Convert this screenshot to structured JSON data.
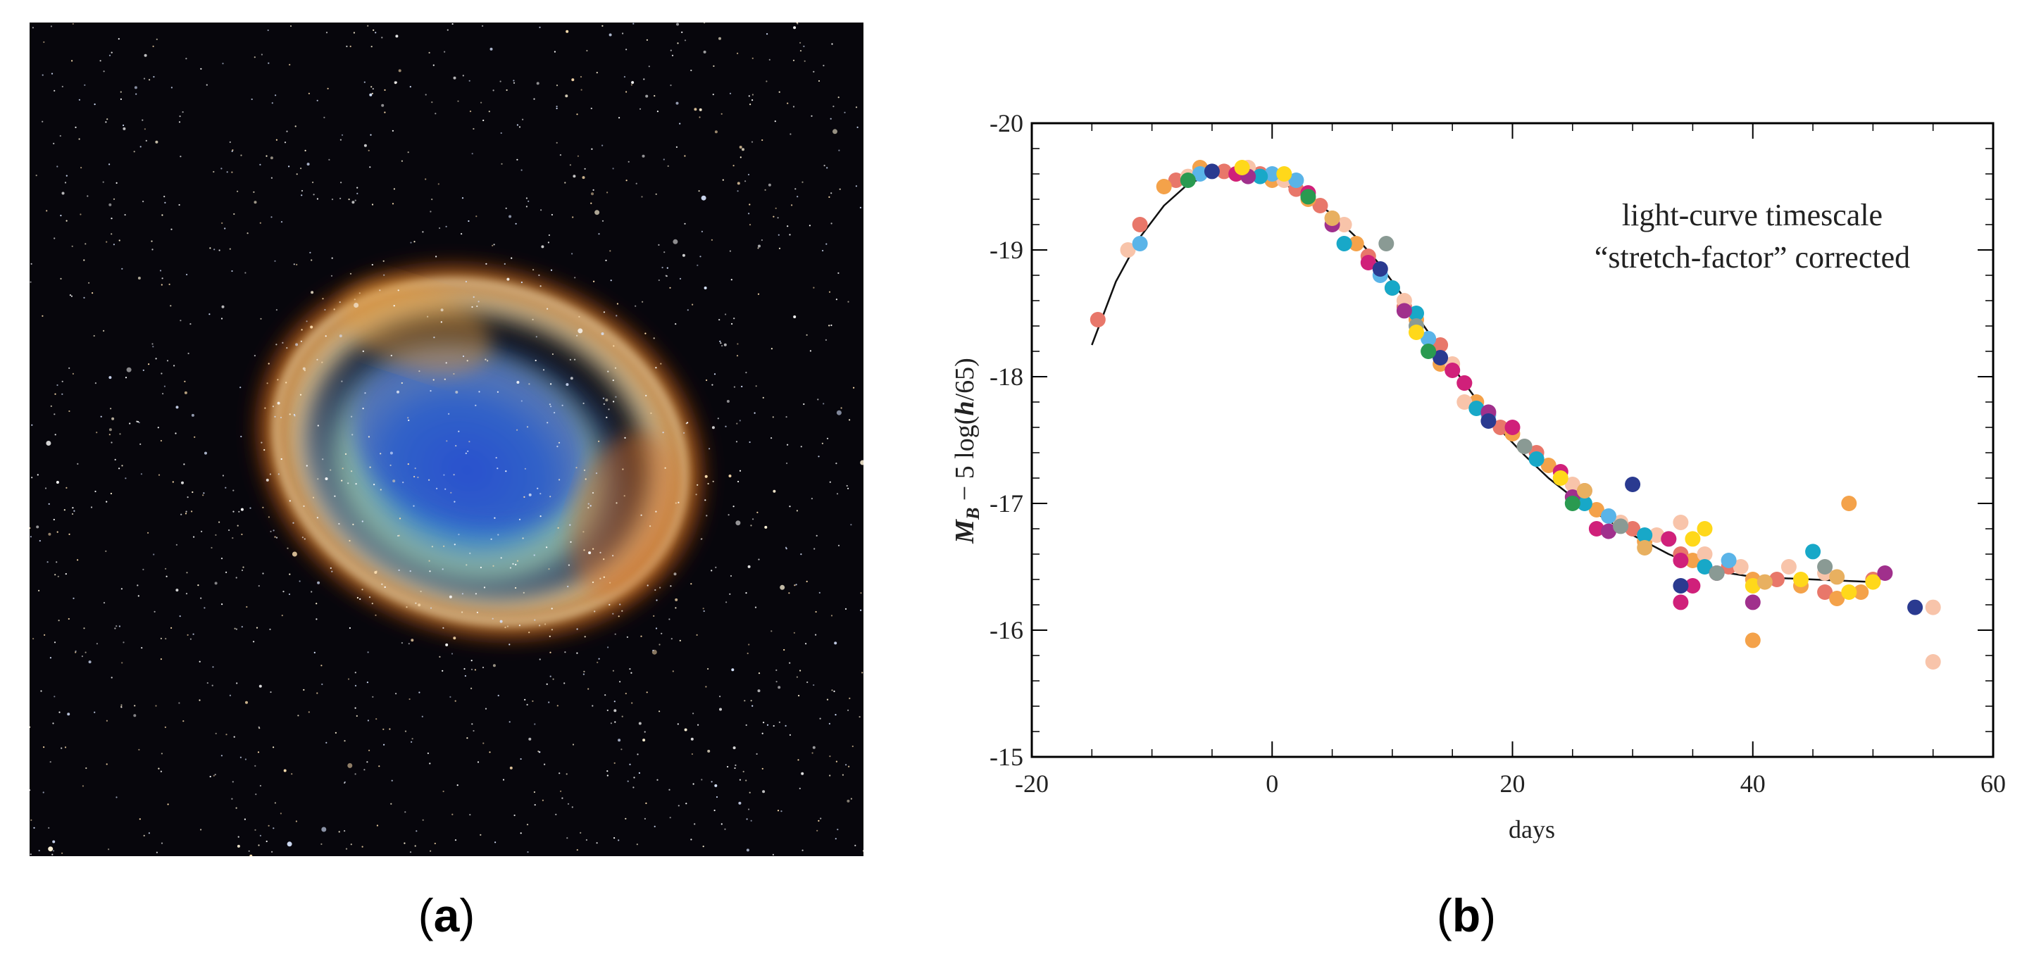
{
  "panel_a": {
    "label_open": "(",
    "label_letter": "a",
    "label_close": ")",
    "description_icon": "supernova-remnant-image"
  },
  "panel_b": {
    "label_open": "(",
    "label_letter": "b",
    "label_close": ")"
  },
  "chart_data": {
    "type": "scatter",
    "title": "",
    "annotation": [
      "light-curve timescale",
      "“stretch-factor” corrected"
    ],
    "xlabel": "days",
    "ylabel": "M_B − 5 log(h/65)",
    "ylabel_parts": {
      "m": "M",
      "sub": "B",
      "rest": " − 5 log(",
      "h": "h",
      "end": "/65)"
    },
    "xlim": [
      -20,
      60
    ],
    "ylim": [
      -15,
      -20
    ],
    "xticks": [
      -20,
      0,
      20,
      40,
      60
    ],
    "yticks": [
      -20,
      -19,
      -18,
      -17,
      -16,
      -15
    ],
    "grid": false,
    "fit_curve": {
      "x": [
        -15,
        -13,
        -11,
        -9,
        -7,
        -5,
        -3,
        -1,
        1,
        3,
        5,
        7,
        9,
        11,
        13,
        15,
        17,
        19,
        21,
        23,
        25,
        27,
        30,
        33,
        36,
        40,
        45,
        50
      ],
      "y": [
        -18.25,
        -18.75,
        -19.1,
        -19.35,
        -19.52,
        -19.6,
        -19.62,
        -19.6,
        -19.52,
        -19.42,
        -19.28,
        -19.1,
        -18.88,
        -18.62,
        -18.35,
        -18.08,
        -17.82,
        -17.58,
        -17.38,
        -17.2,
        -17.05,
        -16.92,
        -16.75,
        -16.6,
        -16.48,
        -16.42,
        -16.4,
        -16.38
      ]
    },
    "series": [
      {
        "name": "coral",
        "color": "#e8776a",
        "points": [
          [
            -14.5,
            -18.45
          ],
          [
            -11,
            -19.2
          ],
          [
            -8,
            -19.55
          ],
          [
            -4,
            -19.62
          ],
          [
            -1,
            -19.6
          ],
          [
            2,
            -19.48
          ],
          [
            4,
            -19.35
          ],
          [
            8,
            -18.95
          ],
          [
            11,
            -18.55
          ],
          [
            14,
            -18.25
          ],
          [
            16,
            -17.95
          ],
          [
            19,
            -17.6
          ],
          [
            22,
            -17.4
          ],
          [
            26,
            -17.1
          ],
          [
            30,
            -16.8
          ],
          [
            34,
            -16.6
          ],
          [
            38,
            -16.5
          ],
          [
            42,
            -16.4
          ],
          [
            46,
            -16.3
          ],
          [
            50,
            -16.4
          ]
        ]
      },
      {
        "name": "orange",
        "color": "#f4a24a",
        "points": [
          [
            -9,
            -19.5
          ],
          [
            -6,
            -19.65
          ],
          [
            -3,
            -19.6
          ],
          [
            0,
            -19.55
          ],
          [
            3,
            -19.4
          ],
          [
            5,
            -19.25
          ],
          [
            7,
            -19.05
          ],
          [
            10,
            -18.7
          ],
          [
            12,
            -18.45
          ],
          [
            14,
            -18.1
          ],
          [
            17,
            -17.8
          ],
          [
            20,
            -17.55
          ],
          [
            23,
            -17.3
          ],
          [
            27,
            -16.95
          ],
          [
            31,
            -16.7
          ],
          [
            35,
            -16.55
          ],
          [
            40,
            -16.4
          ],
          [
            44,
            -16.35
          ],
          [
            47,
            -16.25
          ],
          [
            48,
            -17.0
          ],
          [
            40,
            -15.92
          ],
          [
            49,
            -16.3
          ]
        ]
      },
      {
        "name": "peach",
        "color": "#f8c4aa",
        "points": [
          [
            -12,
            -19.0
          ],
          [
            -7,
            -19.58
          ],
          [
            -2,
            -19.65
          ],
          [
            1,
            -19.55
          ],
          [
            6,
            -19.2
          ],
          [
            11,
            -18.6
          ],
          [
            15,
            -18.1
          ],
          [
            16,
            -17.8
          ],
          [
            21,
            -17.45
          ],
          [
            25,
            -17.15
          ],
          [
            29,
            -16.85
          ],
          [
            32,
            -16.75
          ],
          [
            36,
            -16.6
          ],
          [
            39,
            -16.5
          ],
          [
            43,
            -16.5
          ],
          [
            46,
            -16.45
          ],
          [
            55,
            -16.18
          ],
          [
            55,
            -15.75
          ],
          [
            34,
            -16.85
          ]
        ]
      },
      {
        "name": "sky",
        "color": "#5ab4e8",
        "points": [
          [
            -11,
            -19.05
          ],
          [
            -6,
            -19.6
          ],
          [
            0,
            -19.6
          ],
          [
            2,
            -19.55
          ],
          [
            9,
            -18.8
          ],
          [
            13,
            -18.3
          ],
          [
            18,
            -17.7
          ],
          [
            22,
            -17.35
          ],
          [
            28,
            -16.9
          ],
          [
            33,
            -16.72
          ],
          [
            38,
            -16.55
          ]
        ]
      },
      {
        "name": "teal",
        "color": "#18a8c8",
        "points": [
          [
            -1,
            -19.58
          ],
          [
            6,
            -19.05
          ],
          [
            10,
            -18.7
          ],
          [
            12,
            -18.5
          ],
          [
            17,
            -17.75
          ],
          [
            22,
            -17.35
          ],
          [
            26,
            -17.0
          ],
          [
            31,
            -16.75
          ],
          [
            36,
            -16.5
          ],
          [
            45,
            -16.62
          ]
        ]
      },
      {
        "name": "magenta",
        "color": "#d0207a",
        "points": [
          [
            -3,
            -19.6
          ],
          [
            3,
            -19.45
          ],
          [
            8,
            -18.9
          ],
          [
            15,
            -18.05
          ],
          [
            16,
            -17.95
          ],
          [
            20,
            -17.6
          ],
          [
            24,
            -17.25
          ],
          [
            27,
            -16.8
          ],
          [
            33,
            -16.72
          ],
          [
            34,
            -16.55
          ],
          [
            35,
            -16.35
          ],
          [
            37,
            -16.45
          ],
          [
            34,
            -16.22
          ]
        ]
      },
      {
        "name": "purple",
        "color": "#a0308c",
        "points": [
          [
            -2,
            -19.58
          ],
          [
            5,
            -19.2
          ],
          [
            11,
            -18.52
          ],
          [
            18,
            -17.72
          ],
          [
            25,
            -17.05
          ],
          [
            28,
            -16.78
          ],
          [
            40,
            -16.22
          ],
          [
            51,
            -16.45
          ]
        ]
      },
      {
        "name": "navy",
        "color": "#2a3a90",
        "points": [
          [
            -5,
            -19.62
          ],
          [
            9,
            -18.85
          ],
          [
            14,
            -18.15
          ],
          [
            18,
            -17.65
          ],
          [
            30,
            -17.15
          ],
          [
            34,
            -16.35
          ],
          [
            53.5,
            -16.18
          ]
        ]
      },
      {
        "name": "green",
        "color": "#2a9a50",
        "points": [
          [
            -7,
            -19.55
          ],
          [
            3,
            -19.42
          ],
          [
            13,
            -18.2
          ],
          [
            25,
            -17.0
          ]
        ]
      },
      {
        "name": "gray",
        "color": "#8a9a94",
        "points": [
          [
            9.5,
            -19.05
          ],
          [
            12,
            -18.4
          ],
          [
            21,
            -17.45
          ],
          [
            29,
            -16.82
          ],
          [
            37,
            -16.45
          ],
          [
            46,
            -16.5
          ]
        ]
      },
      {
        "name": "yellow",
        "color": "#ffd81a",
        "points": [
          [
            -2.5,
            -19.65
          ],
          [
            1,
            -19.6
          ],
          [
            12,
            -18.35
          ],
          [
            24,
            -17.2
          ],
          [
            35,
            -16.72
          ],
          [
            36,
            -16.8
          ],
          [
            40,
            -16.35
          ],
          [
            48,
            -16.3
          ],
          [
            50,
            -16.38
          ],
          [
            44,
            -16.4
          ]
        ]
      },
      {
        "name": "sand",
        "color": "#e8b060",
        "points": [
          [
            5,
            -19.25
          ],
          [
            26,
            -17.1
          ],
          [
            31,
            -16.65
          ],
          [
            41,
            -16.38
          ],
          [
            47,
            -16.42
          ]
        ]
      }
    ]
  }
}
